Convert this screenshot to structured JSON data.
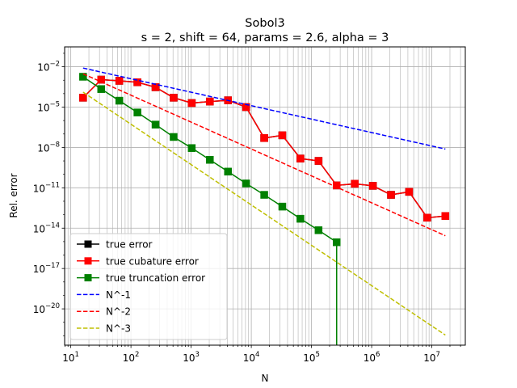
{
  "chart_data": {
    "type": "line",
    "title": "Sobol3",
    "subtitle": "s = 2, shift = 64, params = 2.6, alpha = 3",
    "xlabel": "N",
    "ylabel": "Rel. error",
    "xscale": "log",
    "yscale": "log",
    "xlim": [
      7.9,
      36000000
    ],
    "ylim": [
      2e-23,
      0.3
    ],
    "grid": "major and minor",
    "legend_position": "lower-left",
    "x_ticks": [
      {
        "base": "10",
        "exp": "1",
        "value": 10
      },
      {
        "base": "10",
        "exp": "2",
        "value": 100
      },
      {
        "base": "10",
        "exp": "3",
        "value": 1000
      },
      {
        "base": "10",
        "exp": "4",
        "value": 10000
      },
      {
        "base": "10",
        "exp": "5",
        "value": 100000
      },
      {
        "base": "10",
        "exp": "6",
        "value": 1000000
      },
      {
        "base": "10",
        "exp": "7",
        "value": 10000000
      }
    ],
    "y_ticks": [
      {
        "base": "10",
        "exp": "−2",
        "value": 0.01
      },
      {
        "base": "10",
        "exp": "−5",
        "value": 1e-05
      },
      {
        "base": "10",
        "exp": "−8",
        "value": 1e-08
      },
      {
        "base": "10",
        "exp": "−11",
        "value": 1e-11
      },
      {
        "base": "10",
        "exp": "−14",
        "value": 1e-14
      },
      {
        "base": "10",
        "exp": "−17",
        "value": 1e-17
      },
      {
        "base": "10",
        "exp": "−20",
        "value": 1e-20
      }
    ],
    "series": [
      {
        "name": "true error",
        "color": "#000000",
        "style": "solid",
        "marker": "square",
        "x": [
          16,
          32,
          64,
          128,
          256,
          512,
          1024,
          2048,
          4096,
          8192,
          16384,
          32768,
          65536,
          131072,
          262144,
          524288,
          1048576,
          2097152,
          4194304,
          8388608,
          16777216
        ],
        "y": [
          5e-05,
          0.0011,
          0.0009,
          0.0007,
          0.0003,
          5e-05,
          2e-05,
          2.6e-05,
          3.2e-05,
          1e-05,
          5e-08,
          8e-08,
          1.5e-09,
          1e-09,
          1.5e-11,
          2e-11,
          1.4e-11,
          3e-12,
          5e-12,
          6e-14,
          8e-14
        ]
      },
      {
        "name": "true cubature error",
        "color": "#ff0000",
        "style": "solid",
        "marker": "square",
        "x": [
          16,
          32,
          64,
          128,
          256,
          512,
          1024,
          2048,
          4096,
          8192,
          16384,
          32768,
          65536,
          131072,
          262144,
          524288,
          1048576,
          2097152,
          4194304,
          8388608,
          16777216
        ],
        "y": [
          5e-05,
          0.0011,
          0.0009,
          0.0007,
          0.0003,
          5e-05,
          2e-05,
          2.6e-05,
          3.2e-05,
          1e-05,
          5e-08,
          8e-08,
          1.5e-09,
          1e-09,
          1.5e-11,
          2e-11,
          1.4e-11,
          3e-12,
          5e-12,
          6e-14,
          8e-14
        ]
      },
      {
        "name": "true truncation error",
        "color": "#008000",
        "style": "solid",
        "marker": "square",
        "x": [
          16,
          32,
          64,
          128,
          256,
          512,
          1024,
          2048,
          4096,
          8192,
          16384,
          32768,
          65536,
          131072,
          262144,
          262144
        ],
        "y": [
          0.0018,
          0.00022,
          3e-05,
          4e-06,
          5e-07,
          6e-08,
          9e-09,
          1.2e-09,
          1.6e-10,
          2.1e-11,
          3e-12,
          4e-13,
          5e-14,
          7e-15,
          9e-16,
          2e-23
        ]
      },
      {
        "name": "N^-1",
        "color": "#0000ff",
        "style": "dashed",
        "marker": "none",
        "x": [
          16,
          16777216
        ],
        "y": [
          0.008,
          7.63e-09
        ]
      },
      {
        "name": "N^-2",
        "color": "#ff0000",
        "style": "dashed",
        "marker": "none",
        "x": [
          16,
          16777216
        ],
        "y": [
          0.003,
          2.73e-15
        ]
      },
      {
        "name": "N^-3",
        "color": "#bfbf00",
        "style": "dashed",
        "marker": "none",
        "x": [
          16,
          16777216
        ],
        "y": [
          0.00013,
          1.13e-22
        ]
      }
    ]
  }
}
